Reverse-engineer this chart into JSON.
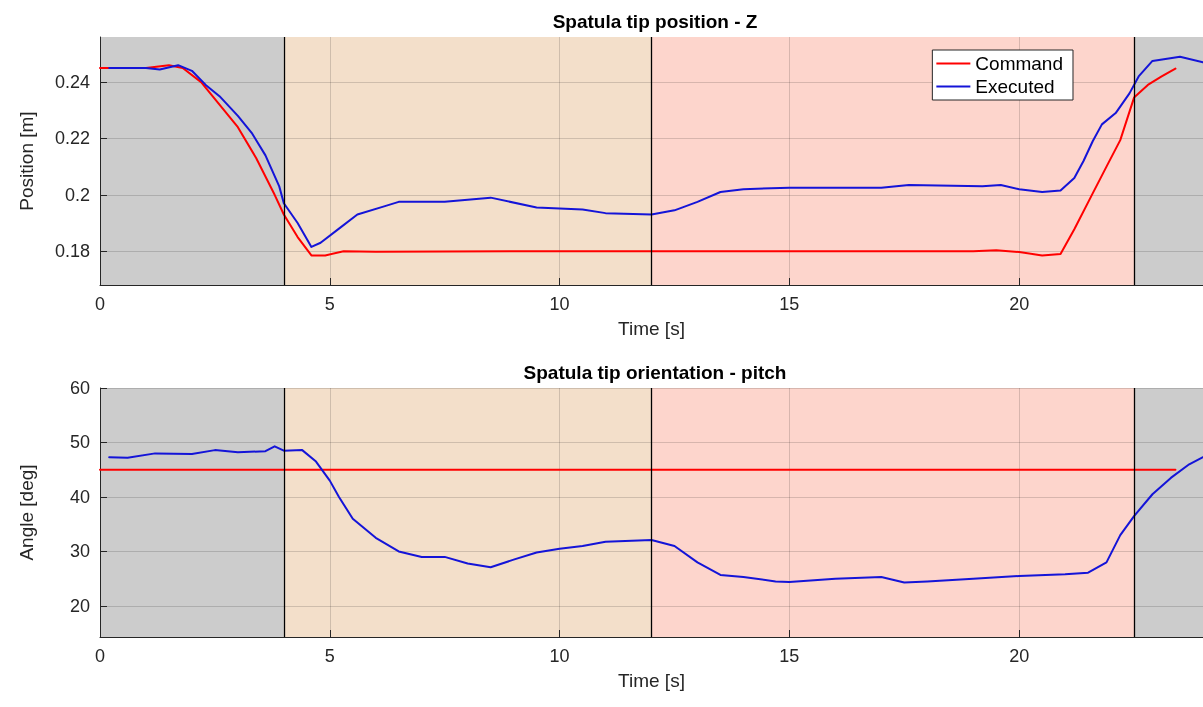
{
  "chart_data": [
    {
      "type": "line",
      "title": "Spatula tip position - Z",
      "xlabel": "Time [s]",
      "ylabel": "Position [m]",
      "xlim": [
        0,
        24
      ],
      "xticks": [
        0,
        5,
        10,
        15,
        20
      ],
      "ylim": [
        0.168,
        0.256
      ],
      "yticks": [
        0.18,
        0.2,
        0.22,
        0.24
      ],
      "grid": true,
      "legend": "top right",
      "marker": "none",
      "line_style": "solid",
      "bands": [
        {
          "axis": "x",
          "from": 0,
          "to": 4,
          "color": "#cccccc"
        },
        {
          "axis": "x",
          "from": 4,
          "to": 12,
          "color": "#f3dfca"
        },
        {
          "axis": "x",
          "from": 12,
          "to": 22.5,
          "color": "#fdd5cc"
        },
        {
          "axis": "x",
          "from": 22.5,
          "to": 24,
          "color": "#cccccc"
        }
      ],
      "ref_lines": [
        {
          "axis": "x",
          "value": 4,
          "color": "#000000"
        },
        {
          "axis": "x",
          "value": 12,
          "color": "#000000"
        },
        {
          "axis": "x",
          "value": 22.5,
          "color": "#000000"
        }
      ],
      "series": [
        {
          "name": "Command",
          "color": "#ff0000",
          "x": [
            0,
            1.0,
            1.5,
            1.8,
            2.2,
            2.6,
            3.0,
            3.4,
            3.8,
            4.0,
            4.3,
            4.6,
            4.9,
            5.3,
            6,
            10,
            15,
            19,
            19.5,
            20,
            20.5,
            20.9,
            21.2,
            21.6,
            21.9,
            22.2,
            22.5,
            22.8,
            23.1,
            23.4
          ],
          "values": [
            0.245,
            0.245,
            0.246,
            0.245,
            0.24,
            0.232,
            0.224,
            0.213,
            0.2,
            0.193,
            0.185,
            0.1785,
            0.1785,
            0.18,
            0.1798,
            0.18,
            0.18,
            0.18,
            0.1803,
            0.1797,
            0.1785,
            0.179,
            0.1878,
            0.2005,
            0.21,
            0.2194,
            0.2345,
            0.239,
            0.242,
            0.2448
          ]
        },
        {
          "name": "Executed",
          "color": "#1414d8",
          "x": [
            0.2,
            1.0,
            1.3,
            1.7,
            2.0,
            2.3,
            2.6,
            3.0,
            3.3,
            3.6,
            3.9,
            4.0,
            4.3,
            4.6,
            4.8,
            5.2,
            5.6,
            6.2,
            6.5,
            7.5,
            8.5,
            9.5,
            10.5,
            11,
            12,
            12.5,
            13,
            13.5,
            14,
            15,
            16,
            17,
            17.6,
            19.2,
            19.6,
            20,
            20.5,
            20.9,
            21.2,
            21.4,
            21.6,
            21.8,
            22.1,
            22.4,
            22.6,
            22.9,
            23.5,
            24
          ],
          "values": [
            0.245,
            0.245,
            0.2445,
            0.246,
            0.244,
            0.239,
            0.235,
            0.228,
            0.222,
            0.214,
            0.203,
            0.197,
            0.19,
            0.1815,
            0.183,
            0.188,
            0.193,
            0.196,
            0.1975,
            0.1975,
            0.199,
            0.1955,
            0.1948,
            0.1935,
            0.193,
            0.1945,
            0.1975,
            0.201,
            0.202,
            0.2025,
            0.2025,
            0.2025,
            0.2035,
            0.203,
            0.2035,
            0.202,
            0.201,
            0.2015,
            0.206,
            0.212,
            0.219,
            0.225,
            0.229,
            0.236,
            0.242,
            0.2475,
            0.249,
            0.247
          ]
        }
      ]
    },
    {
      "type": "line",
      "title": "Spatula tip orientation - pitch",
      "xlabel": "Time [s]",
      "ylabel": "Angle [deg]",
      "xlim": [
        0,
        24
      ],
      "xticks": [
        0,
        5,
        10,
        15,
        20
      ],
      "ylim": [
        14.3,
        60
      ],
      "yticks": [
        20,
        30,
        40,
        50,
        60
      ],
      "grid": true,
      "marker": "none",
      "line_style": "solid",
      "bands": [
        {
          "axis": "x",
          "from": 0,
          "to": 4,
          "color": "#cccccc"
        },
        {
          "axis": "x",
          "from": 4,
          "to": 12,
          "color": "#f3dfca"
        },
        {
          "axis": "x",
          "from": 12,
          "to": 22.5,
          "color": "#fdd5cc"
        },
        {
          "axis": "x",
          "from": 22.5,
          "to": 24,
          "color": "#cccccc"
        }
      ],
      "ref_lines": [
        {
          "axis": "x",
          "value": 4,
          "color": "#000000"
        },
        {
          "axis": "x",
          "value": 12,
          "color": "#000000"
        },
        {
          "axis": "x",
          "value": 22.5,
          "color": "#000000"
        }
      ],
      "series": [
        {
          "color": "#ff0000",
          "x": [
            0,
            23.4
          ],
          "values": [
            45,
            45
          ]
        },
        {
          "color": "#1414d8",
          "x": [
            0.2,
            0.6,
            1.2,
            2,
            2.5,
            3,
            3.6,
            3.8,
            4.0,
            4.4,
            4.7,
            5.0,
            5.2,
            5.5,
            6,
            6.5,
            7,
            7.5,
            8,
            8.5,
            9,
            9.5,
            10,
            10.5,
            11,
            12,
            12.5,
            13,
            13.5,
            14,
            14.7,
            15,
            16,
            17,
            17.5,
            18,
            19,
            20,
            21,
            21.5,
            21.9,
            22.2,
            22.5,
            22.9,
            23.3,
            23.7,
            24
          ],
          "values": [
            47.3,
            47.2,
            48.0,
            47.9,
            48.6,
            48.2,
            48.4,
            49.3,
            48.5,
            48.6,
            46.5,
            43,
            40,
            36,
            32.5,
            30,
            29,
            29,
            27.8,
            27.1,
            28.5,
            29.8,
            30.5,
            31,
            31.8,
            32.1,
            31,
            28,
            25.7,
            25.3,
            24.5,
            24.4,
            25,
            25.3,
            24.3,
            24.5,
            25,
            25.5,
            25.8,
            26.1,
            28,
            33,
            36.5,
            40.5,
            43.5,
            46,
            47.3
          ]
        }
      ]
    }
  ]
}
